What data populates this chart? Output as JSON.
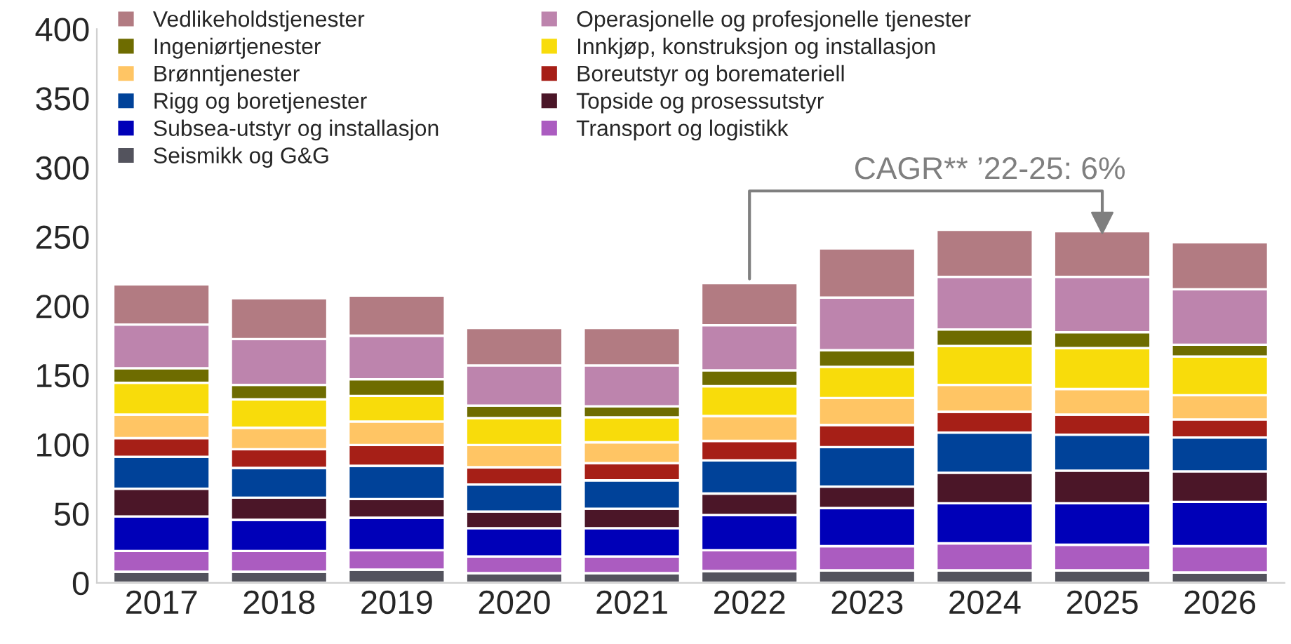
{
  "chart_data": {
    "type": "bar",
    "stacked": true,
    "categories": [
      "2017",
      "2018",
      "2019",
      "2020",
      "2021",
      "2022",
      "2023",
      "2024",
      "2025",
      "2026"
    ],
    "series": [
      {
        "name": "Seismikk og G&G",
        "color": "#53535d",
        "values": [
          8,
          8,
          9.5,
          7,
          7,
          8.5,
          9,
          9,
          9,
          7.5
        ]
      },
      {
        "name": "Transport og logistikk",
        "color": "#ab5cc0",
        "values": [
          15,
          15,
          14,
          12,
          12,
          15,
          17.5,
          19.5,
          18.5,
          19
        ]
      },
      {
        "name": "Subsea-utstyr og installasjon",
        "color": "#0000b8",
        "values": [
          25,
          22.5,
          23.5,
          20.5,
          20.5,
          25.5,
          27.5,
          29,
          30,
          32
        ]
      },
      {
        "name": "Topside og prosessutstyr",
        "color": "#4b1628",
        "values": [
          20,
          16,
          13.5,
          12,
          14,
          15.5,
          15.5,
          22,
          23.5,
          22
        ]
      },
      {
        "name": "Rigg og boretjenester",
        "color": "#004299",
        "values": [
          23,
          21.5,
          24,
          19.5,
          20.5,
          24,
          28.5,
          29,
          26,
          24.5
        ]
      },
      {
        "name": "Boreutstyr og boremateriell",
        "color": "#a61f17",
        "values": [
          13.5,
          13.5,
          15,
          12.5,
          12.5,
          14,
          16,
          15,
          14.5,
          13
        ]
      },
      {
        "name": "Brønntjenester",
        "color": "#ffc564",
        "values": [
          17,
          15.5,
          17,
          16,
          15,
          18,
          19.5,
          19.5,
          18.5,
          17.5
        ]
      },
      {
        "name": "Innkjøp, konstruksjon og installasjon",
        "color": "#f8dc0b",
        "values": [
          23,
          20.5,
          18.5,
          19.5,
          18,
          21.5,
          22.5,
          28,
          29.5,
          28
        ]
      },
      {
        "name": "Ingeniørtjenester",
        "color": "#6e6c00",
        "values": [
          10.5,
          10.5,
          12,
          9,
          8,
          11.5,
          12,
          12,
          11.5,
          8.5
        ]
      },
      {
        "name": "Operasjonelle og profesjonelle tjenester",
        "color": "#bd84ad",
        "values": [
          31.5,
          33,
          31.5,
          29,
          29.5,
          32.5,
          38,
          38,
          40,
          40
        ]
      },
      {
        "name": "Vedlikeholdstjenester",
        "color": "#b27b82",
        "values": [
          29,
          29.5,
          29,
          27,
          27,
          30.5,
          35.5,
          34,
          33,
          34
        ]
      }
    ],
    "ylim": [
      0,
      400
    ],
    "yticks": [
      0,
      50,
      100,
      150,
      200,
      250,
      300,
      350,
      400
    ],
    "grid": false,
    "legend": "top left",
    "annotations": [
      {
        "text": "CAGR** ’22-25: 6%",
        "x": "2025",
        "y": 255
      }
    ]
  }
}
